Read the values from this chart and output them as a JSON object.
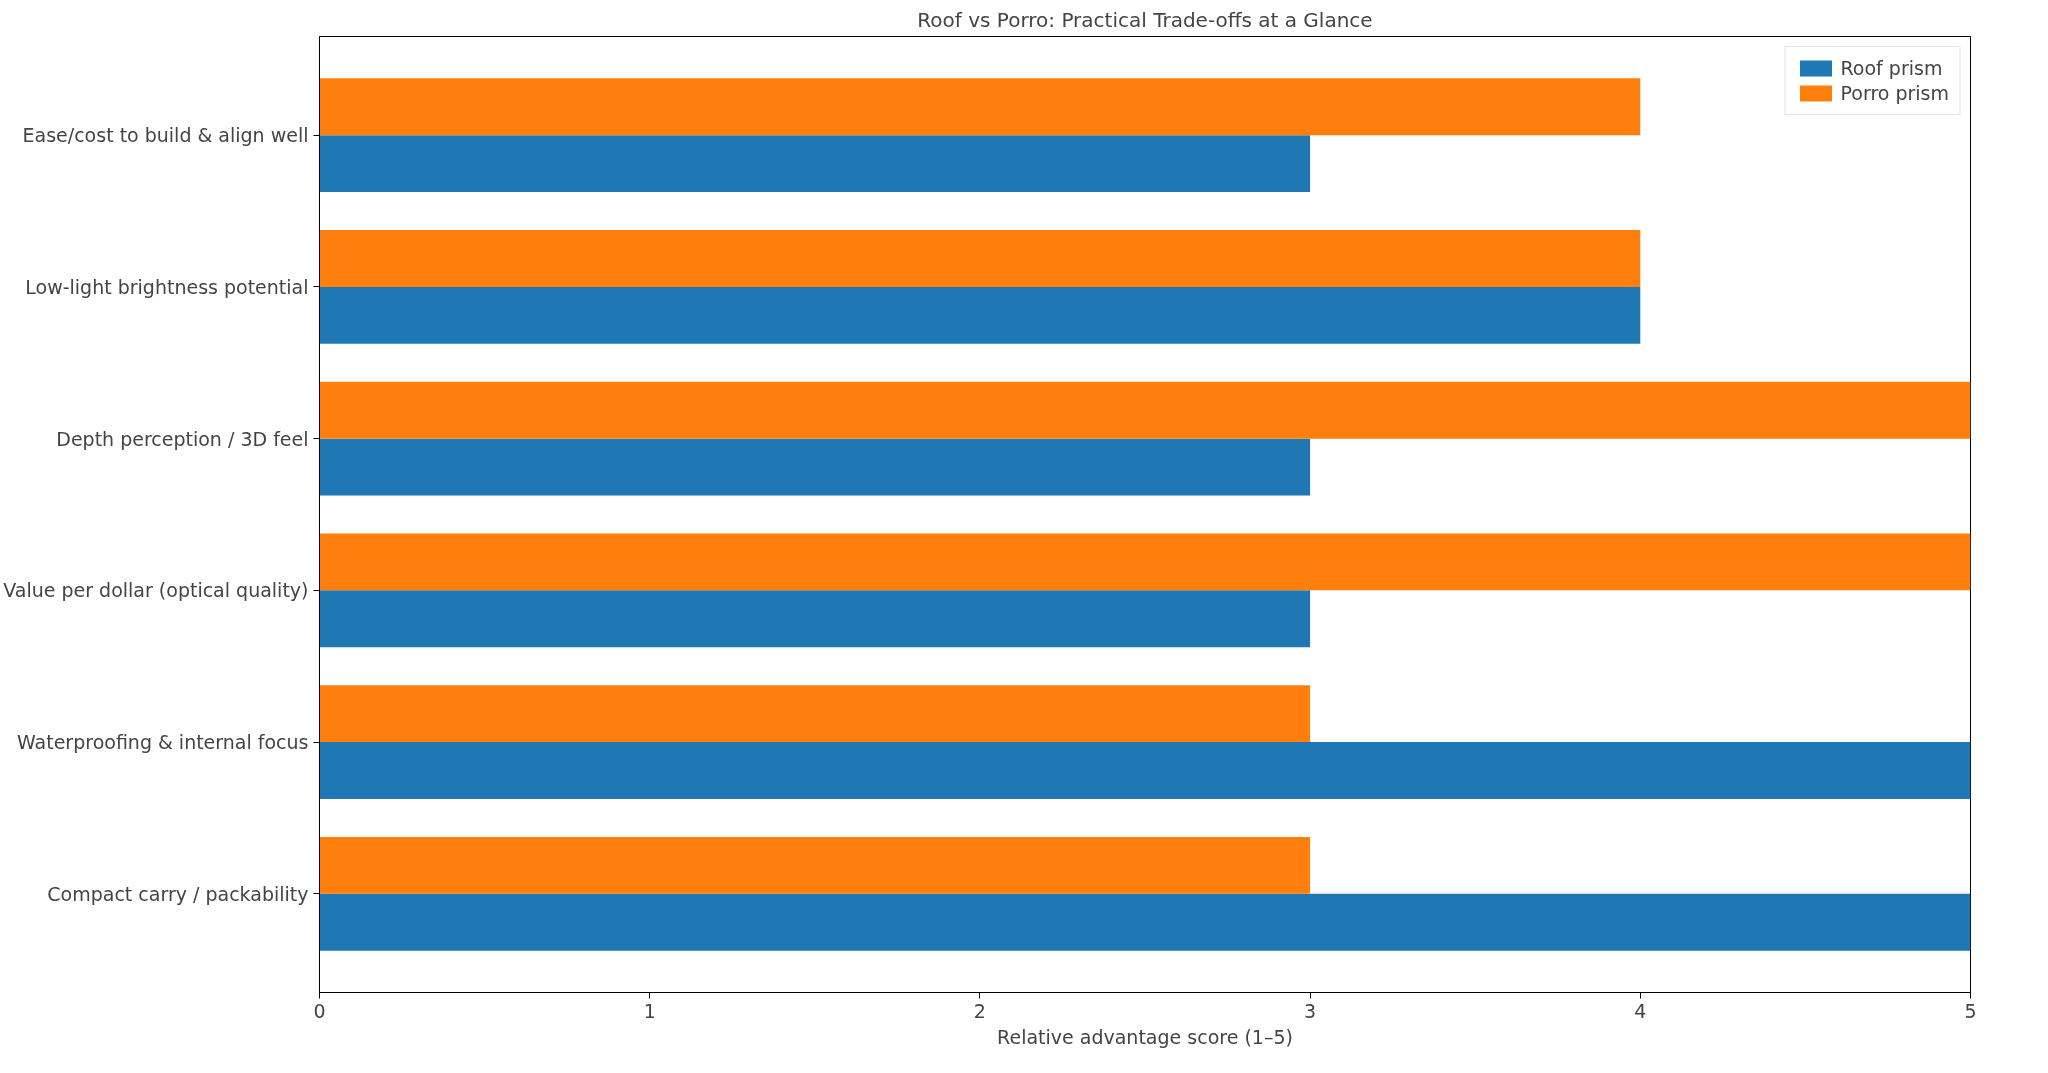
{
  "chart_data": {
    "type": "bar",
    "orientation": "horizontal",
    "title": "Roof vs Porro: Practical Trade-offs at a Glance",
    "xlabel": "Relative advantage score (1–5)",
    "categories": [
      "Ease/cost to build & align well",
      "Low-light brightness potential",
      "Depth perception / 3D feel",
      "Value per dollar (optical quality)",
      "Waterproofing & internal focus",
      "Compact carry / packability"
    ],
    "series": [
      {
        "name": "Roof prism",
        "color": "#1f77b4",
        "values": [
          3,
          4,
          3,
          3,
          5,
          5
        ]
      },
      {
        "name": "Porro prism",
        "color": "#ff7f0e",
        "values": [
          4,
          4,
          5,
          5,
          3,
          3
        ]
      }
    ],
    "xlim": [
      0,
      5
    ],
    "xticks": [
      0,
      1,
      2,
      3,
      4,
      5
    ],
    "legend": "top right"
  }
}
